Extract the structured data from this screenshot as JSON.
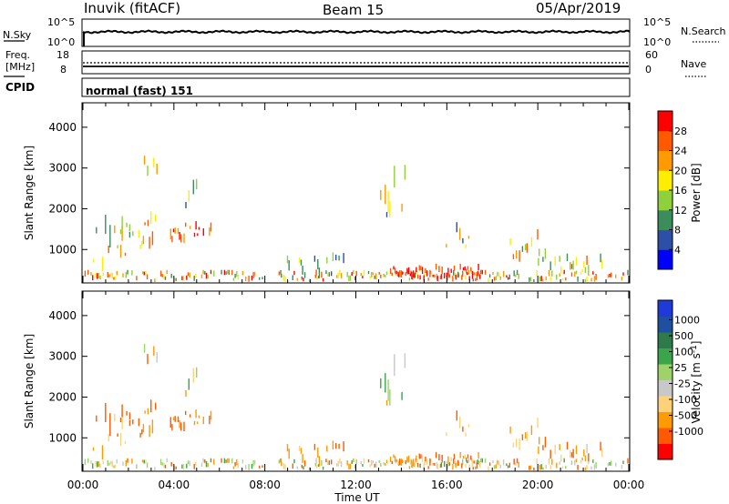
{
  "header": {
    "station": "Inuvik (fitACF)",
    "beam": "Beam 15",
    "date": "05/Apr/2019"
  },
  "panels": {
    "nsky_label": "N.Sky",
    "nsky_ticks": [
      "10^5",
      "10^0"
    ],
    "nsearch_label": "N.Search",
    "nsearch_ticks": [
      "10^5",
      "10^0"
    ],
    "freq_label": "Freq.",
    "freq_unit": "[MHz]",
    "freq_ticks": [
      "18",
      "8"
    ],
    "nave_label": "Nave",
    "nave_ticks": [
      "60",
      "0"
    ],
    "cpid_label": "CPID",
    "cpid_text": "normal (fast) 151"
  },
  "colors": {
    "power": [
      "#0000ff",
      "#2e4fa8",
      "#3c8d5c",
      "#8fd13a",
      "#ffee00",
      "#ff9a00",
      "#ff5a00",
      "#ff0000"
    ],
    "velocity": [
      "#ff0000",
      "#ff5a00",
      "#ff9a00",
      "#ffd27a",
      "#c8c8c8",
      "#9ed36a",
      "#3aa54a",
      "#2e7a4a",
      "#1e4fa0",
      "#1e3ad8"
    ]
  },
  "chart_data": [
    {
      "type": "heatmap",
      "title": "Power",
      "ylabel": "Slant Range [km]",
      "xlabel": "Time UT",
      "x_ticks": [
        "00:00",
        "04:00",
        "08:00",
        "12:00",
        "16:00",
        "20:00",
        "00:00"
      ],
      "y_ticks": [
        "4000",
        "3000",
        "2000",
        "1000"
      ],
      "ylim": [
        180,
        4600
      ],
      "xlim_hours": [
        0,
        24
      ],
      "colorbar_label": "Power [dB]",
      "colorbar_ticks": [
        "28",
        "24",
        "20",
        "16",
        "12",
        "8",
        "4"
      ],
      "colorbar_range": [
        0,
        30
      ]
    },
    {
      "type": "heatmap",
      "title": "Velocity",
      "ylabel": "Slant Range [km]",
      "xlabel": "Time UT",
      "x_ticks": [
        "00:00",
        "04:00",
        "08:00",
        "12:00",
        "16:00",
        "20:00",
        "00:00"
      ],
      "y_ticks": [
        "4000",
        "3000",
        "2000",
        "1000"
      ],
      "ylim": [
        180,
        4600
      ],
      "xlim_hours": [
        0,
        24
      ],
      "colorbar_label": "Velocity [m s-1]",
      "colorbar_ticks": [
        "1000",
        "500",
        "100",
        "25",
        "-25",
        "-100",
        "-500",
        "-1000"
      ]
    }
  ],
  "time_axis_label": "Time UT"
}
